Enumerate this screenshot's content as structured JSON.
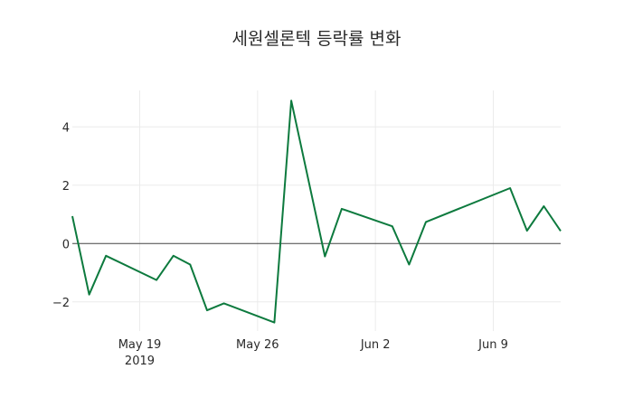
{
  "chart_data": {
    "type": "line",
    "title": "세원셀론텍 등락률 변화",
    "xlabel": "",
    "ylabel": "",
    "x": [
      "2019-05-15",
      "2019-05-16",
      "2019-05-17",
      "2019-05-20",
      "2019-05-21",
      "2019-05-22",
      "2019-05-23",
      "2019-05-24",
      "2019-05-27",
      "2019-05-28",
      "2019-05-30",
      "2019-05-31",
      "2019-06-03",
      "2019-06-04",
      "2019-06-05",
      "2019-06-10",
      "2019-06-11",
      "2019-06-12",
      "2019-06-13"
    ],
    "series": [
      {
        "name": "등락률",
        "color": "#0d7a3e",
        "values": [
          0.94,
          -1.75,
          -0.42,
          -1.25,
          -0.42,
          -0.72,
          -2.29,
          -2.05,
          -2.71,
          4.9,
          -0.44,
          1.19,
          0.59,
          -0.72,
          0.74,
          1.9,
          0.44,
          1.28,
          0.43
        ]
      }
    ],
    "xlim": [
      "2019-05-15",
      "2019-06-13"
    ],
    "ylim": [
      -3.0,
      5.25
    ],
    "x_ticks": [
      {
        "date": "2019-05-19",
        "label": "May 19",
        "sublabel": "2019"
      },
      {
        "date": "2019-05-26",
        "label": "May 26",
        "sublabel": ""
      },
      {
        "date": "2019-06-02",
        "label": "Jun 2",
        "sublabel": ""
      },
      {
        "date": "2019-06-09",
        "label": "Jun 9",
        "sublabel": ""
      }
    ],
    "y_ticks": [
      {
        "value": -2,
        "label": "−2"
      },
      {
        "value": 0,
        "label": "0"
      },
      {
        "value": 2,
        "label": "2"
      },
      {
        "value": 4,
        "label": "4"
      }
    ],
    "grid": true,
    "zero_line": true,
    "legend": false
  }
}
